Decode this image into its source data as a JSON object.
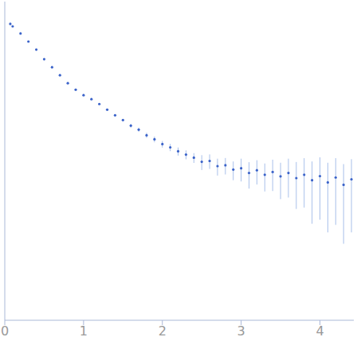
{
  "chart_data": {
    "type": "scatter",
    "x": [
      0.07,
      0.1,
      0.2,
      0.3,
      0.4,
      0.5,
      0.6,
      0.7,
      0.8,
      0.9,
      1.0,
      1.1,
      1.2,
      1.3,
      1.4,
      1.5,
      1.6,
      1.7,
      1.8,
      1.9,
      2.0,
      2.1,
      2.2,
      2.3,
      2.4,
      2.5,
      2.6,
      2.7,
      2.8,
      2.9,
      3.0,
      3.1,
      3.2,
      3.3,
      3.4,
      3.5,
      3.6,
      3.7,
      3.8,
      3.9,
      4.0,
      4.1,
      4.2,
      4.3,
      4.4
    ],
    "values": [
      1.0,
      0.933,
      0.759,
      0.603,
      0.479,
      0.363,
      0.288,
      0.229,
      0.182,
      0.151,
      0.129,
      0.115,
      0.1,
      0.0851,
      0.0724,
      0.0631,
      0.0537,
      0.0479,
      0.0407,
      0.0363,
      0.0316,
      0.0288,
      0.0257,
      0.0234,
      0.0214,
      0.019,
      0.0195,
      0.0168,
      0.0172,
      0.0152,
      0.0158,
      0.0138,
      0.0149,
      0.0131,
      0.0142,
      0.0125,
      0.0138,
      0.0119,
      0.0131,
      0.0112,
      0.0126,
      0.0105,
      0.0121,
      0.0098,
      0.0115
    ],
    "errors": [
      0.002,
      0.002,
      0.002,
      0.002,
      0.002,
      0.002,
      0.002,
      0.002,
      0.002,
      0.002,
      0.002,
      0.002,
      0.002,
      0.002,
      0.002,
      0.002,
      0.003,
      0.003,
      0.003,
      0.003,
      0.003,
      0.003,
      0.003,
      0.003,
      0.003,
      0.004,
      0.004,
      0.004,
      0.004,
      0.004,
      0.005,
      0.005,
      0.005,
      0.005,
      0.006,
      0.006,
      0.007,
      0.007,
      0.008,
      0.008,
      0.009,
      0.008,
      0.009,
      0.008,
      0.009
    ],
    "xlim": [
      0,
      4.43
    ],
    "xticks": [
      0,
      1,
      2,
      3,
      4
    ],
    "ylim": [
      0.0002,
      1.9
    ],
    "yticks": [
      0.001,
      0.01,
      0.1,
      1
    ],
    "log": "y",
    "tick_labels": "x",
    "color": "#3b63c9",
    "marker": "circle",
    "grid": false
  }
}
